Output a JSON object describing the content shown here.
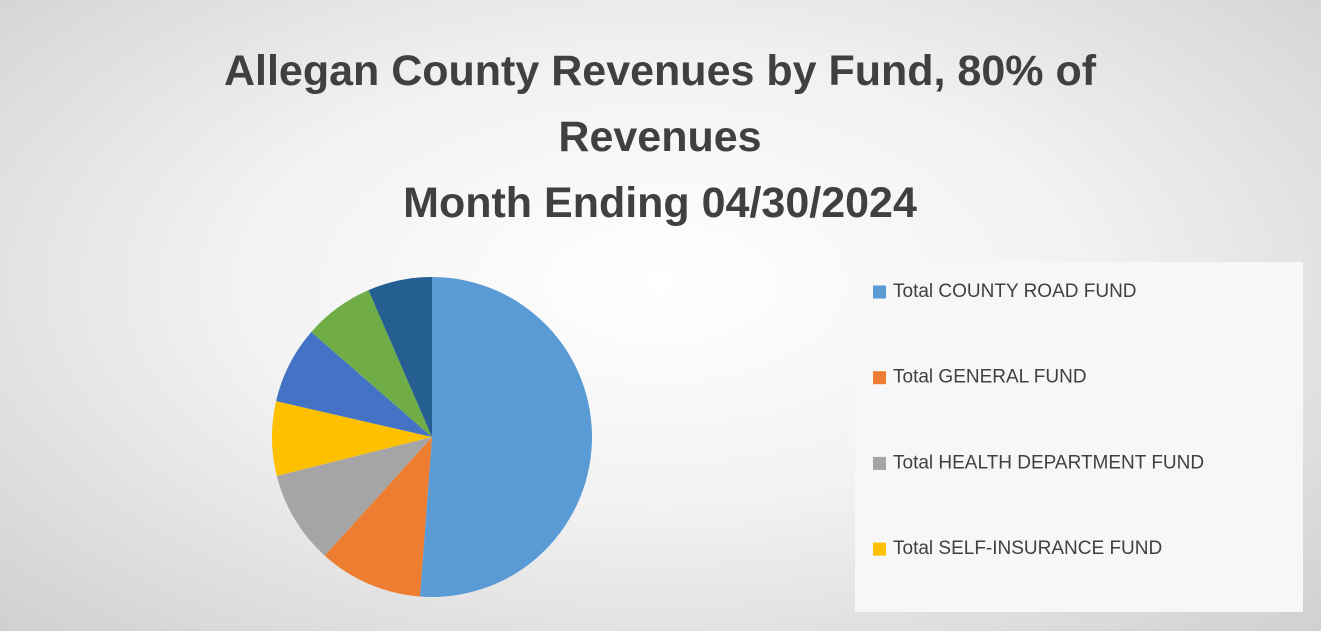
{
  "chart_data": {
    "type": "pie",
    "title": "Allegan County Revenues by Fund, 80% of Revenues",
    "subtitle": "Month Ending 04/30/2024",
    "categories": [
      "Total COUNTY ROAD FUND",
      "Total GENERAL FUND",
      "Total HEALTH DEPARTMENT FUND",
      "Total SELF-INSURANCE FUND",
      null,
      null,
      null
    ],
    "values": [
      51.2,
      10.5,
      9.4,
      7.5,
      7.8,
      7.1,
      6.5
    ],
    "colors": [
      "#5b9bd5",
      "#ed7d31",
      "#a5a5a5",
      "#ffc000",
      "#4472c4",
      "#70ad47",
      "#255e91"
    ],
    "legend": "right"
  }
}
